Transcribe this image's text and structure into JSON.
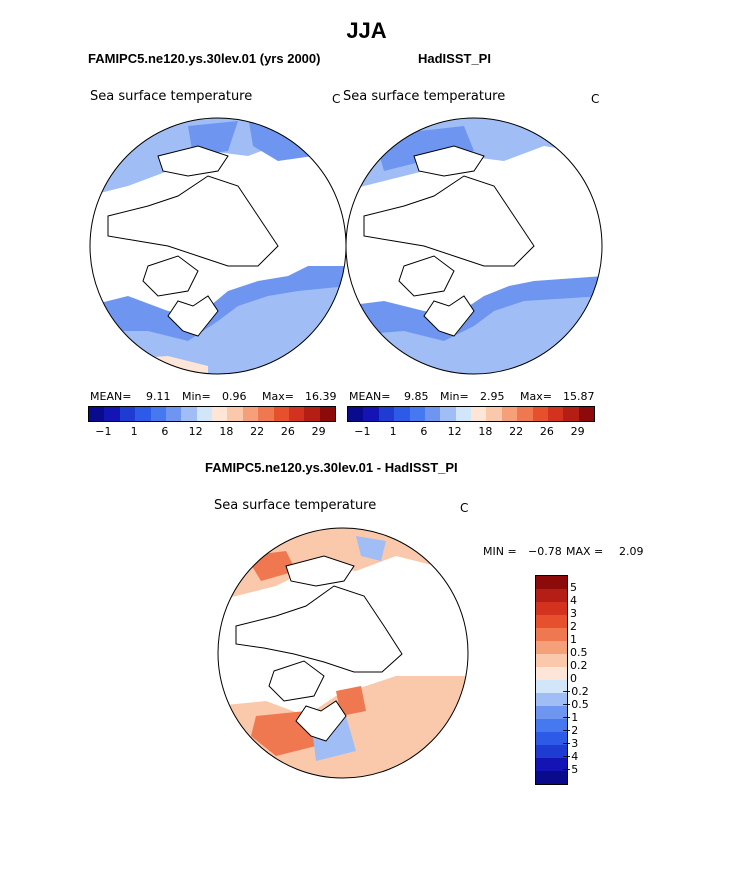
{
  "title": "JJA",
  "panels": {
    "left": {
      "case_name": "FAMIPC5.ne120.ys.30lev.01 (yrs 2000)",
      "variable": "Sea surface temperature",
      "units": "C",
      "mean_label": "MEAN=",
      "mean": "9.11",
      "min_label": "Min=",
      "min": "0.96",
      "max_label": "Max=",
      "max": "16.39"
    },
    "right": {
      "case_name": "HadISST_PI",
      "variable": "Sea surface temperature",
      "units": "C",
      "mean_label": "MEAN=",
      "mean": "9.85",
      "min_label": "Min=",
      "min": "2.95",
      "max_label": "Max=",
      "max": "15.87"
    },
    "diff": {
      "case_name": "FAMIPC5.ne120.ys.30lev.01 - HadISST_PI",
      "variable": "Sea surface temperature",
      "units": "C",
      "min_label": "MIN =",
      "min": "−0.78",
      "max_label": "MAX =",
      "max": "2.09"
    }
  },
  "colorbar_abs": {
    "colors": [
      "#0a0a8c",
      "#1414b4",
      "#1e3cd2",
      "#2d5ae6",
      "#4678f0",
      "#6e96f0",
      "#a0bef5",
      "#d2e6fa",
      "#fde6d7",
      "#fac8aa",
      "#f5a078",
      "#f07850",
      "#e6502d",
      "#d2321e",
      "#b41e14",
      "#8c0a0a"
    ],
    "tick_labels": [
      "−1",
      "1",
      "6",
      "12",
      "18",
      "22",
      "26",
      "29"
    ]
  },
  "colorbar_diff": {
    "colors": [
      "#8c0a0a",
      "#b41e14",
      "#d2321e",
      "#e6502d",
      "#f07850",
      "#f5a078",
      "#fac8aa",
      "#fde6d7",
      "#d2e6fa",
      "#a0bef5",
      "#6e96f0",
      "#4678f0",
      "#2d5ae6",
      "#1e3cd2",
      "#1414b4",
      "#0a0a8c"
    ],
    "labels": [
      "5",
      "4",
      "3",
      "2",
      "1",
      "0.5",
      "0.2",
      "0",
      "−0.2",
      "−0.5",
      "−1",
      "−2",
      "−3",
      "−4",
      "−5"
    ]
  },
  "map_colors": {
    "ocean_cold": "#a0bef5",
    "ocean_cool": "#6e96f0",
    "ocean_mid": "#4678f0",
    "ocean_warm": "#d2e6fa",
    "diff_red": "#f07850",
    "diff_pink": "#fac8aa",
    "diff_blue": "#a0bef5"
  }
}
